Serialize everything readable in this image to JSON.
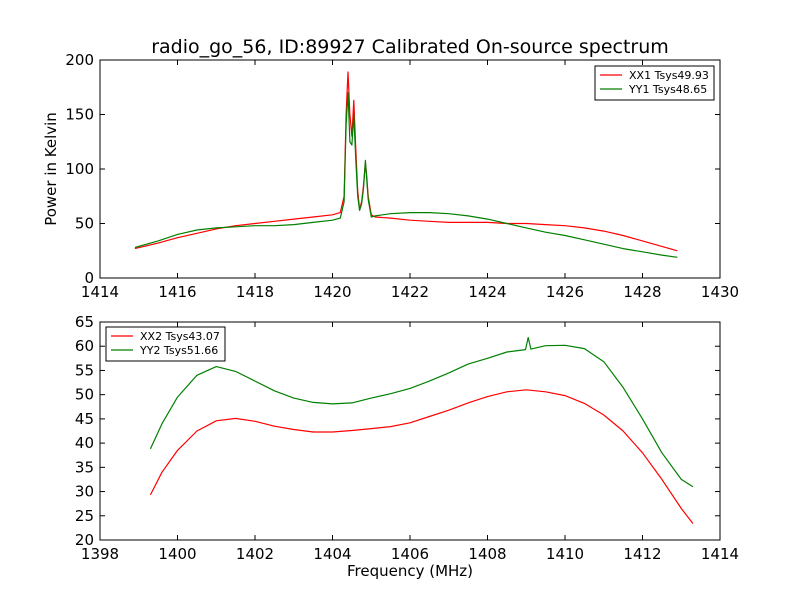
{
  "figure": {
    "title": "radio_go_56, ID:89927 Calibrated On-source spectrum"
  },
  "chart_data": [
    {
      "type": "line",
      "title": "radio_go_56, ID:89927 Calibrated On-source spectrum",
      "xlabel": "",
      "ylabel": "Power in Kelvin",
      "xlim": [
        1414,
        1430
      ],
      "ylim": [
        0,
        200
      ],
      "x_ticks": [
        "1414",
        "1416",
        "1418",
        "1420",
        "1422",
        "1424",
        "1426",
        "1428",
        "1430"
      ],
      "y_ticks": [
        "0",
        "50",
        "100",
        "150",
        "200"
      ],
      "grid": false,
      "legend_position": "top-right",
      "series": [
        {
          "name": "XX1 Tsys49.93",
          "color": "#ff0000",
          "x": [
            1414.9,
            1415.5,
            1416.0,
            1416.5,
            1417.0,
            1417.5,
            1418.0,
            1418.5,
            1419.0,
            1419.5,
            1420.0,
            1420.2,
            1420.3,
            1420.35,
            1420.4,
            1420.45,
            1420.5,
            1420.55,
            1420.6,
            1420.65,
            1420.7,
            1420.75,
            1420.8,
            1420.85,
            1420.88,
            1420.92,
            1421.0,
            1421.1,
            1421.5,
            1422.0,
            1422.5,
            1423.0,
            1423.5,
            1424.0,
            1424.5,
            1425.0,
            1425.5,
            1426.0,
            1426.5,
            1427.0,
            1427.5,
            1428.0,
            1428.5,
            1428.9
          ],
          "y": [
            27,
            32,
            37,
            41,
            45,
            48,
            50,
            52,
            54,
            56,
            58,
            60,
            75,
            150,
            189,
            150,
            130,
            163,
            120,
            80,
            63,
            70,
            85,
            106,
            95,
            75,
            58,
            56,
            55,
            53,
            52,
            51,
            51,
            51,
            50,
            50,
            49,
            48,
            46,
            43,
            39,
            34,
            29,
            25
          ]
        },
        {
          "name": "YY1 Tsys48.65",
          "color": "#008000",
          "x": [
            1414.9,
            1415.5,
            1416.0,
            1416.5,
            1417.0,
            1417.5,
            1418.0,
            1418.5,
            1419.0,
            1419.5,
            1420.0,
            1420.2,
            1420.3,
            1420.35,
            1420.4,
            1420.45,
            1420.5,
            1420.55,
            1420.6,
            1420.65,
            1420.7,
            1420.75,
            1420.8,
            1420.85,
            1420.88,
            1420.92,
            1421.0,
            1421.1,
            1421.5,
            1422.0,
            1422.5,
            1423.0,
            1423.5,
            1424.0,
            1424.5,
            1425.0,
            1425.5,
            1426.0,
            1426.5,
            1427.0,
            1427.5,
            1428.0,
            1428.5,
            1428.9
          ],
          "y": [
            28,
            34,
            40,
            44,
            46,
            47,
            48,
            48,
            49,
            51,
            53,
            55,
            70,
            140,
            170,
            125,
            122,
            150,
            110,
            75,
            62,
            68,
            82,
            108,
            92,
            72,
            56,
            57,
            59,
            60,
            60,
            59,
            57,
            54,
            50,
            46,
            42,
            39,
            35,
            31,
            27,
            24,
            21,
            19
          ]
        }
      ]
    },
    {
      "type": "line",
      "title": "",
      "xlabel": "Frequency (MHz)",
      "ylabel": "",
      "xlim": [
        1398,
        1414
      ],
      "ylim": [
        20,
        65
      ],
      "x_ticks": [
        "1398",
        "1400",
        "1402",
        "1404",
        "1406",
        "1408",
        "1410",
        "1412",
        "1414"
      ],
      "y_ticks": [
        "20",
        "25",
        "30",
        "35",
        "40",
        "45",
        "50",
        "55",
        "60",
        "65"
      ],
      "grid": false,
      "legend_position": "top-left",
      "series": [
        {
          "name": "XX2 Tsys43.07",
          "color": "#ff0000",
          "x": [
            1399.3,
            1399.6,
            1400.0,
            1400.5,
            1401.0,
            1401.5,
            1402.0,
            1402.5,
            1403.0,
            1403.5,
            1404.0,
            1404.5,
            1405.0,
            1405.5,
            1406.0,
            1406.5,
            1407.0,
            1407.5,
            1408.0,
            1408.5,
            1409.0,
            1409.5,
            1410.0,
            1410.5,
            1411.0,
            1411.5,
            1412.0,
            1412.5,
            1413.0,
            1413.3
          ],
          "y": [
            29.3,
            34,
            38.5,
            42.5,
            44.6,
            45.1,
            44.5,
            43.5,
            42.8,
            42.3,
            42.3,
            42.6,
            43,
            43.4,
            44.2,
            45.5,
            46.8,
            48.3,
            49.6,
            50.6,
            51,
            50.6,
            49.8,
            48.2,
            45.8,
            42.5,
            38,
            32.5,
            26.5,
            23.4
          ]
        },
        {
          "name": "YY2 Tsys51.66",
          "color": "#008000",
          "x": [
            1399.3,
            1399.6,
            1400.0,
            1400.5,
            1401.0,
            1401.5,
            1402.0,
            1402.5,
            1403.0,
            1403.5,
            1404.0,
            1404.5,
            1405.0,
            1405.5,
            1406.0,
            1406.5,
            1407.0,
            1407.5,
            1408.0,
            1408.5,
            1408.98,
            1409.05,
            1409.12,
            1409.5,
            1410.0,
            1410.5,
            1411.0,
            1411.5,
            1412.0,
            1412.5,
            1413.0,
            1413.3
          ],
          "y": [
            38.8,
            44,
            49.5,
            54,
            55.8,
            54.8,
            52.8,
            50.8,
            49.3,
            48.4,
            48.1,
            48.3,
            49.3,
            50.2,
            51.3,
            52.8,
            54.5,
            56.3,
            57.5,
            58.8,
            59.3,
            61.8,
            59.4,
            60.1,
            60.2,
            59.5,
            56.8,
            51.5,
            45,
            38,
            32.5,
            31
          ]
        }
      ]
    }
  ]
}
